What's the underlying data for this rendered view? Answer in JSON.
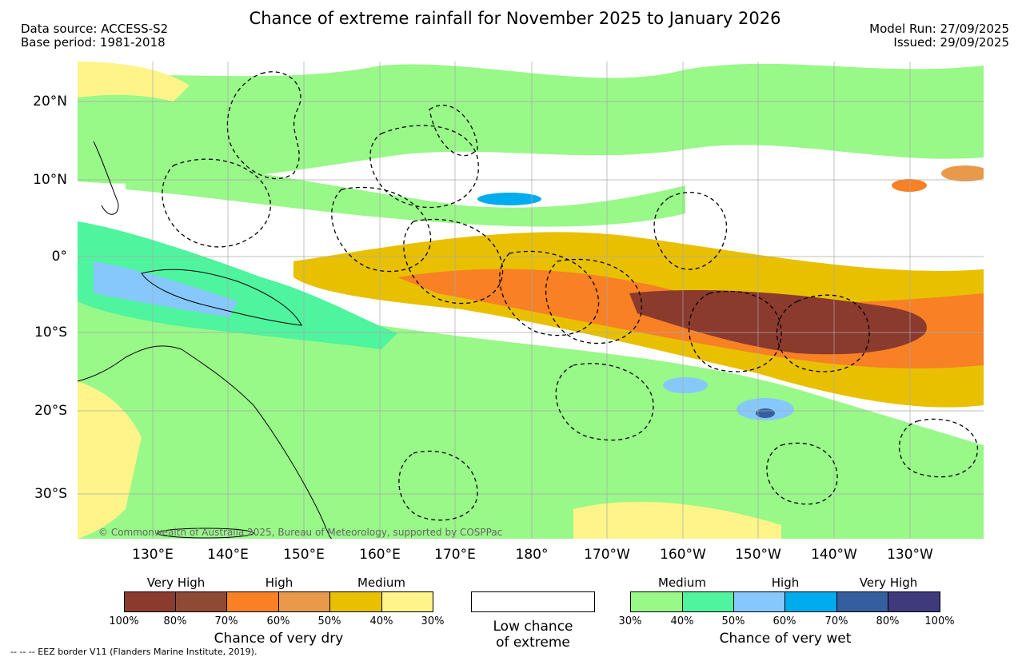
{
  "header": {
    "title": "Chance of extreme rainfall for November 2025 to January 2026",
    "data_source": "Data source: ACCESS-S2",
    "base_period": "Base period: 1981-2018",
    "model_run": "Model Run: 27/09/2025",
    "issued": "Issued: 29/09/2025"
  },
  "map": {
    "lat_labels": [
      "20°N",
      "10°N",
      "0°",
      "10°S",
      "20°S",
      "30°S"
    ],
    "lon_labels": [
      "130°E",
      "140°E",
      "150°E",
      "160°E",
      "170°E",
      "180°",
      "170°W",
      "160°W",
      "150°W",
      "140°W",
      "130°W"
    ],
    "copyright": "© Commonwealth of Australia 2025, Bureau of Meteorology, supported by COSPPac"
  },
  "legend": {
    "dry": {
      "caption": "Chance of very dry",
      "categories": [
        "Very High",
        "High",
        "Medium"
      ],
      "ticks": [
        "100%",
        "80%",
        "70%",
        "60%",
        "50%",
        "40%",
        "30%"
      ],
      "colors": [
        "#8b3a2e",
        "#8e4a35",
        "#f88025",
        "#e89a4a",
        "#e8c000",
        "#fef48a"
      ]
    },
    "neutral": {
      "caption_line1": "Low chance",
      "caption_line2": "of extreme"
    },
    "wet": {
      "caption": "Chance of very wet",
      "categories": [
        "Medium",
        "High",
        "Very High"
      ],
      "ticks": [
        "30%",
        "40%",
        "50%",
        "60%",
        "70%",
        "80%",
        "100%"
      ],
      "colors": [
        "#98f888",
        "#4ef49e",
        "#86c8fc",
        "#00aced",
        "#345f9e",
        "#3e3a7c"
      ]
    }
  },
  "footer": {
    "eez_note": "-- -- -- EEZ border V11 (Flanders Marine Institute, 2019)."
  }
}
